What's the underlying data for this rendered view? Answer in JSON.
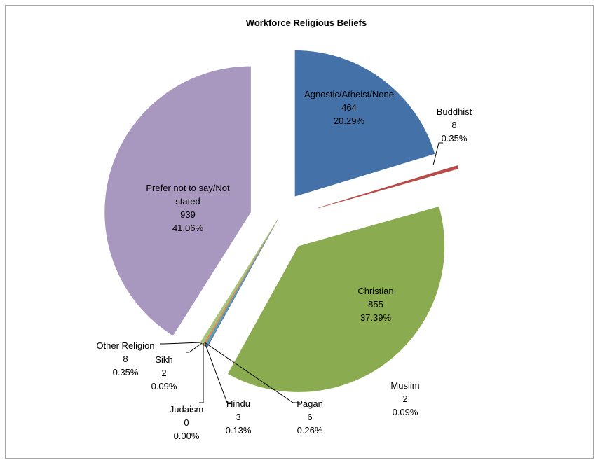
{
  "chart_data": {
    "type": "pie",
    "title": "Workforce Religious Beliefs",
    "slices": [
      {
        "name": "Agnostic/Atheist/None",
        "value": 464,
        "percent": "20.29%",
        "color": "#4472a8"
      },
      {
        "name": "Buddhist",
        "value": 8,
        "percent": "0.35%",
        "color": "#b84b47"
      },
      {
        "name": "Christian",
        "value": 855,
        "percent": "37.39%",
        "color": "#8aab4f"
      },
      {
        "name": "Muslim",
        "value": 2,
        "percent": "0.09%",
        "color": "#7a5c96"
      },
      {
        "name": "Pagan",
        "value": 6,
        "percent": "0.26%",
        "color": "#4aa3bd"
      },
      {
        "name": "Hindu",
        "value": 3,
        "percent": "0.13%",
        "color": "#e88f3d"
      },
      {
        "name": "Judaism",
        "value": 0,
        "percent": "0.00%",
        "color": "#8fa3c8"
      },
      {
        "name": "Sikh",
        "value": 2,
        "percent": "0.09%",
        "color": "#c98a88"
      },
      {
        "name": "Other Religion",
        "value": 8,
        "percent": "0.35%",
        "color": "#a8c47a"
      },
      {
        "name": "Prefer not to say/Not stated",
        "value": 939,
        "percent": "41.06%",
        "color": "#a898bf"
      }
    ]
  }
}
